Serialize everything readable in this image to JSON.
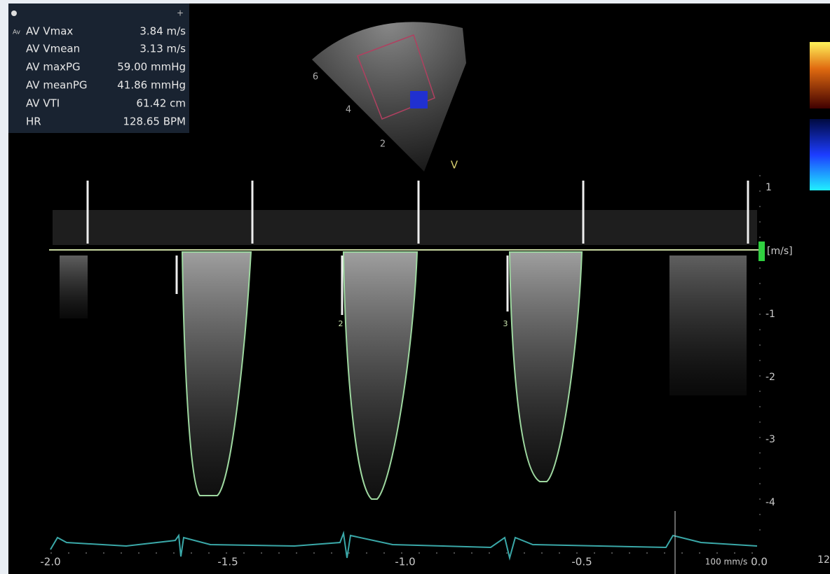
{
  "measurements": {
    "active_marker": "Av",
    "rows": [
      {
        "label": "AV Vmax",
        "value": "3.84 m/s"
      },
      {
        "label": "AV Vmean",
        "value": "3.13 m/s"
      },
      {
        "label": "AV maxPG",
        "value": "59.00 mmHg"
      },
      {
        "label": "AV meanPG",
        "value": "41.86 mmHg"
      },
      {
        "label": "AV VTI",
        "value": "61.42 cm"
      },
      {
        "label": "HR",
        "value": "128.65 BPM"
      }
    ]
  },
  "velocity_axis": {
    "ticks": [
      "1",
      "-1",
      "-2",
      "-3",
      "-4"
    ],
    "unit": "[m/s]"
  },
  "time_axis": {
    "ticks": [
      "-2.0",
      "-1.5",
      "-1.0",
      "-0.5",
      "0.0"
    ],
    "sweep": "100 mm/s"
  },
  "sector": {
    "depth_marks": [
      "6",
      "4",
      "2"
    ],
    "label": "V"
  },
  "cycle_markers": [
    "2",
    "3"
  ],
  "corner_label": "12"
}
